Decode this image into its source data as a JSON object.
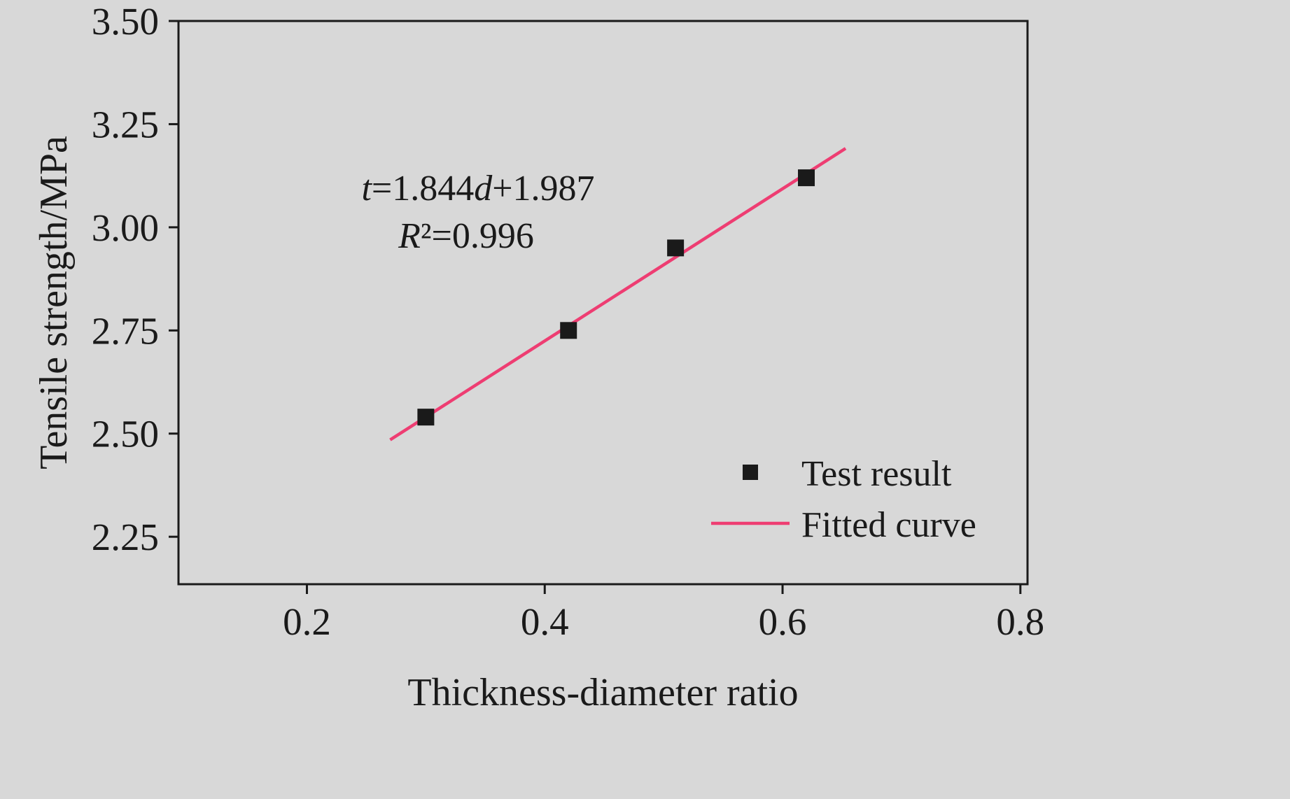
{
  "chart_data": {
    "type": "scatter",
    "title": "",
    "xlabel": "Thickness-diameter ratio",
    "ylabel": "Tensile strength/MPa",
    "xlim": [
      0.092,
      0.806
    ],
    "ylim": [
      2.135,
      3.5
    ],
    "x_ticks": [
      0.2,
      0.4,
      0.6,
      0.8
    ],
    "x_tick_labels": [
      "0.2",
      "0.4",
      "0.6",
      "0.8"
    ],
    "y_ticks": [
      2.25,
      2.5,
      2.75,
      3.0,
      3.25,
      3.5
    ],
    "y_tick_labels": [
      "2.25",
      "2.50",
      "2.75",
      "3.00",
      "3.25",
      "3.50"
    ],
    "grid": false,
    "background": "#d8d8d8",
    "ink_color": "#1a1a1a",
    "series": [
      {
        "name": "Test result",
        "type": "scatter",
        "marker": "square",
        "color": "#1a1a1a",
        "points": [
          [
            0.3,
            2.54
          ],
          [
            0.42,
            2.75
          ],
          [
            0.51,
            2.95
          ],
          [
            0.62,
            3.12
          ]
        ]
      },
      {
        "name": "Fitted curve",
        "type": "line",
        "color": "#ee3d72",
        "slope": 1.844,
        "intercept": 1.987,
        "x_start": 0.27,
        "x_end": 0.653
      }
    ],
    "annotation": {
      "line1": "t=1.844d+1.987",
      "line2": "R²=0.996"
    },
    "legend": {
      "position": "lower right",
      "entries": [
        {
          "label": "Test result",
          "type": "marker"
        },
        {
          "label": "Fitted curve",
          "type": "line"
        }
      ]
    }
  }
}
